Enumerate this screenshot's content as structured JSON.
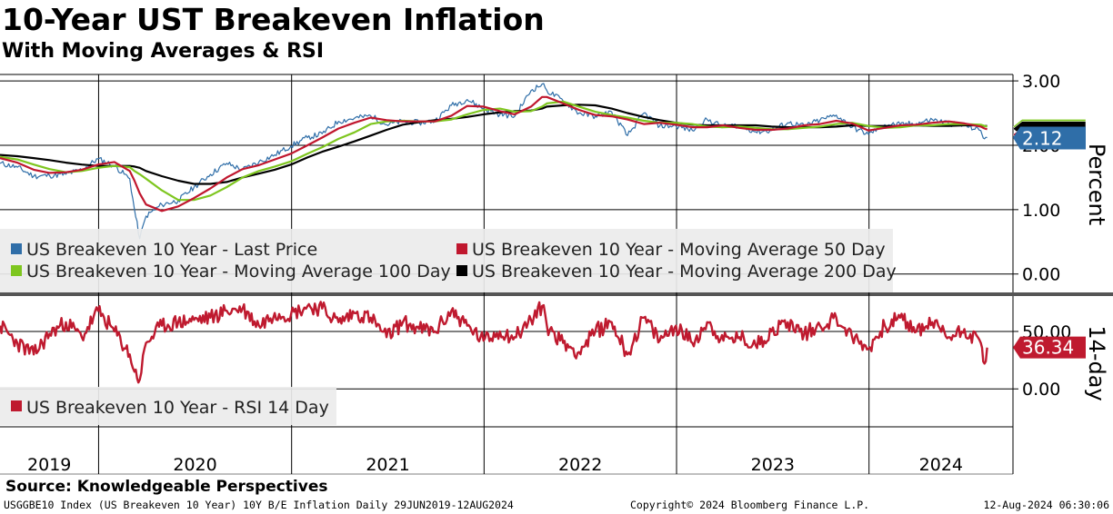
{
  "title": "10-Year UST Breakeven Inflation",
  "subtitle": "With Moving Averages & RSI",
  "source": "Source: Knowledgeable Perspectives",
  "footer": {
    "left": "USGGBE10 Index (US Breakeven 10 Year) 10Y B/E Inflation  Daily 29JUN2019-12AUG2024",
    "center": "Copyright© 2024 Bloomberg Finance L.P.",
    "right": "12-Aug-2024 06:30:06"
  },
  "colors": {
    "last_price": "#2f6ea8",
    "ma50": "#c0172e",
    "ma100": "#7ec61f",
    "ma200": "#000000",
    "rsi": "#bf1a2f",
    "legend_bg": "#ececec"
  },
  "chart_data": [
    {
      "type": "line",
      "panel": "top",
      "ylabel": "Percent",
      "y_ticks": [
        "0.00",
        "1.00",
        "2.00",
        "3.00"
      ],
      "ylim": [
        -0.3,
        3.1
      ],
      "legend_placement": "lower-left",
      "current_value_label": "2.12",
      "x_dates": [
        "2019-06-28",
        "2019-07-31",
        "2019-08-31",
        "2019-09-30",
        "2019-10-31",
        "2019-11-30",
        "2019-12-31",
        "2020-01-31",
        "2020-02-29",
        "2020-03-09",
        "2020-03-19",
        "2020-03-31",
        "2020-04-30",
        "2020-05-31",
        "2020-06-30",
        "2020-07-31",
        "2020-08-31",
        "2020-09-30",
        "2020-10-31",
        "2020-11-30",
        "2020-12-31",
        "2021-01-31",
        "2021-02-28",
        "2021-03-31",
        "2021-04-30",
        "2021-05-31",
        "2021-06-30",
        "2021-07-31",
        "2021-08-31",
        "2021-09-30",
        "2021-10-31",
        "2021-11-30",
        "2021-12-31",
        "2022-01-31",
        "2022-02-28",
        "2022-03-31",
        "2022-04-21",
        "2022-04-30",
        "2022-05-31",
        "2022-06-30",
        "2022-07-31",
        "2022-08-31",
        "2022-09-30",
        "2022-10-31",
        "2022-11-30",
        "2022-12-31",
        "2023-01-31",
        "2023-02-28",
        "2023-03-31",
        "2023-04-30",
        "2023-05-31",
        "2023-06-30",
        "2023-07-31",
        "2023-08-31",
        "2023-09-30",
        "2023-10-31",
        "2023-11-30",
        "2023-12-31",
        "2024-01-31",
        "2024-02-29",
        "2024-03-31",
        "2024-04-30",
        "2024-05-31",
        "2024-06-30",
        "2024-07-31",
        "2024-08-07",
        "2024-08-12"
      ],
      "series": [
        {
          "name": "US Breakeven 10 Year - Last Price",
          "values": [
            1.72,
            1.66,
            1.52,
            1.53,
            1.55,
            1.62,
            1.79,
            1.68,
            1.48,
            1.0,
            0.55,
            0.9,
            1.08,
            1.14,
            1.35,
            1.55,
            1.72,
            1.62,
            1.74,
            1.85,
            1.99,
            2.12,
            2.18,
            2.37,
            2.42,
            2.46,
            2.32,
            2.37,
            2.35,
            2.38,
            2.62,
            2.71,
            2.57,
            2.48,
            2.45,
            2.85,
            2.95,
            2.85,
            2.69,
            2.5,
            2.45,
            2.52,
            2.15,
            2.5,
            2.3,
            2.3,
            2.23,
            2.4,
            2.29,
            2.31,
            2.21,
            2.23,
            2.35,
            2.3,
            2.39,
            2.47,
            2.28,
            2.17,
            2.32,
            2.32,
            2.34,
            2.4,
            2.34,
            2.31,
            2.23,
            2.1,
            2.12
          ]
        },
        {
          "name": "US Breakeven 10 Year - Moving Average 50 Day",
          "values": [
            1.8,
            1.73,
            1.62,
            1.57,
            1.58,
            1.62,
            1.7,
            1.74,
            1.6,
            1.45,
            1.25,
            1.08,
            0.98,
            1.05,
            1.18,
            1.33,
            1.5,
            1.63,
            1.69,
            1.78,
            1.87,
            2.0,
            2.12,
            2.26,
            2.35,
            2.43,
            2.39,
            2.37,
            2.37,
            2.37,
            2.46,
            2.61,
            2.6,
            2.53,
            2.48,
            2.6,
            2.75,
            2.75,
            2.65,
            2.55,
            2.47,
            2.45,
            2.4,
            2.33,
            2.35,
            2.32,
            2.28,
            2.28,
            2.31,
            2.27,
            2.24,
            2.24,
            2.26,
            2.31,
            2.33,
            2.38,
            2.34,
            2.23,
            2.27,
            2.31,
            2.32,
            2.35,
            2.37,
            2.34,
            2.29,
            2.26,
            2.25
          ]
        },
        {
          "name": "US Breakeven 10 Year - Moving Average 100 Day",
          "values": [
            1.82,
            1.78,
            1.7,
            1.63,
            1.58,
            1.6,
            1.65,
            1.68,
            1.66,
            1.6,
            1.55,
            1.48,
            1.3,
            1.15,
            1.15,
            1.22,
            1.35,
            1.5,
            1.6,
            1.67,
            1.75,
            1.87,
            1.97,
            2.1,
            2.2,
            2.33,
            2.37,
            2.38,
            2.37,
            2.37,
            2.4,
            2.48,
            2.55,
            2.57,
            2.52,
            2.53,
            2.6,
            2.65,
            2.68,
            2.6,
            2.52,
            2.47,
            2.43,
            2.38,
            2.35,
            2.35,
            2.33,
            2.29,
            2.28,
            2.29,
            2.27,
            2.25,
            2.25,
            2.27,
            2.29,
            2.33,
            2.35,
            2.3,
            2.27,
            2.28,
            2.31,
            2.31,
            2.33,
            2.33,
            2.32,
            2.3,
            2.29
          ]
        },
        {
          "name": "US Breakeven 10 Year - Moving Average 200 Day",
          "values": [
            1.85,
            1.83,
            1.8,
            1.77,
            1.73,
            1.7,
            1.68,
            1.68,
            1.68,
            1.67,
            1.65,
            1.6,
            1.52,
            1.45,
            1.4,
            1.4,
            1.43,
            1.5,
            1.56,
            1.62,
            1.7,
            1.81,
            1.9,
            1.98,
            2.06,
            2.15,
            2.24,
            2.32,
            2.36,
            2.39,
            2.41,
            2.44,
            2.48,
            2.51,
            2.53,
            2.54,
            2.57,
            2.6,
            2.62,
            2.63,
            2.62,
            2.57,
            2.5,
            2.44,
            2.39,
            2.35,
            2.32,
            2.31,
            2.31,
            2.31,
            2.31,
            2.29,
            2.28,
            2.28,
            2.28,
            2.29,
            2.31,
            2.3,
            2.3,
            2.3,
            2.31,
            2.3,
            2.3,
            2.31,
            2.31,
            2.3,
            2.3
          ]
        }
      ]
    },
    {
      "type": "line",
      "panel": "bottom",
      "ylabel": "14-day",
      "y_ticks": [
        "0.00",
        "50.00"
      ],
      "ylim": [
        -33,
        80
      ],
      "legend_placement": "lower-left",
      "current_value_label": "36.34",
      "x_dates": [
        "2019-06-28",
        "2019-07-31",
        "2019-08-31",
        "2019-09-30",
        "2019-10-31",
        "2019-11-30",
        "2019-12-31",
        "2020-01-31",
        "2020-02-29",
        "2020-03-09",
        "2020-03-19",
        "2020-03-31",
        "2020-04-30",
        "2020-05-31",
        "2020-06-30",
        "2020-07-31",
        "2020-08-31",
        "2020-09-30",
        "2020-10-31",
        "2020-11-30",
        "2020-12-31",
        "2021-01-31",
        "2021-02-28",
        "2021-03-31",
        "2021-04-30",
        "2021-05-31",
        "2021-06-30",
        "2021-07-31",
        "2021-08-31",
        "2021-09-30",
        "2021-10-31",
        "2021-11-30",
        "2021-12-31",
        "2022-01-31",
        "2022-02-28",
        "2022-03-31",
        "2022-04-21",
        "2022-04-30",
        "2022-05-31",
        "2022-06-30",
        "2022-07-31",
        "2022-08-31",
        "2022-09-30",
        "2022-10-31",
        "2022-11-30",
        "2022-12-31",
        "2023-01-31",
        "2023-02-28",
        "2023-03-31",
        "2023-04-30",
        "2023-05-31",
        "2023-06-30",
        "2023-07-31",
        "2023-08-31",
        "2023-09-30",
        "2023-10-31",
        "2023-11-30",
        "2023-12-31",
        "2024-01-31",
        "2024-02-29",
        "2024-03-31",
        "2024-04-30",
        "2024-05-31",
        "2024-06-30",
        "2024-07-31",
        "2024-08-07",
        "2024-08-12"
      ],
      "series": [
        {
          "name": "US Breakeven 10 Year - RSI 14 Day",
          "values": [
            55,
            40,
            30,
            48,
            58,
            45,
            68,
            50,
            30,
            15,
            8,
            40,
            55,
            58,
            60,
            62,
            68,
            70,
            55,
            66,
            65,
            72,
            70,
            58,
            66,
            62,
            45,
            58,
            52,
            50,
            68,
            55,
            42,
            50,
            45,
            60,
            72,
            55,
            40,
            32,
            50,
            58,
            30,
            62,
            42,
            55,
            40,
            58,
            42,
            45,
            38,
            50,
            58,
            48,
            55,
            62,
            45,
            35,
            55,
            62,
            50,
            58,
            45,
            52,
            40,
            22,
            36
          ]
        }
      ]
    }
  ],
  "x_axis": {
    "tick_labels": [
      "2019",
      "2020",
      "2021",
      "2022",
      "2023",
      "2024"
    ],
    "range": [
      "2019-06-28",
      "2024-09-30"
    ]
  }
}
